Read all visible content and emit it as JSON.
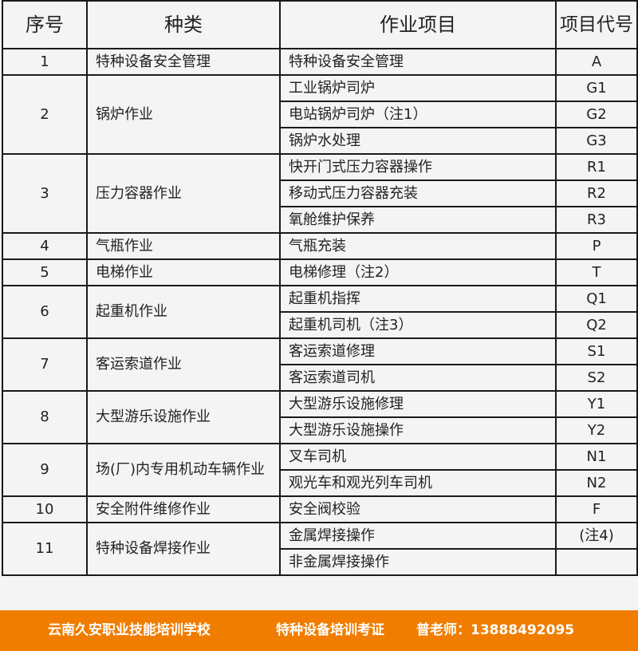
{
  "headers": {
    "no": "序号",
    "category": "种类",
    "item": "作业项目",
    "code": "项目代号"
  },
  "groups": [
    {
      "no": "1",
      "category": "特种设备安全管理",
      "items": [
        {
          "name": "特种设备安全管理",
          "code": "A"
        }
      ]
    },
    {
      "no": "2",
      "category": "锅炉作业",
      "items": [
        {
          "name": "工业锅炉司炉",
          "code": "G1"
        },
        {
          "name": "电站锅炉司炉（注1）",
          "code": "G2"
        },
        {
          "name": "锅炉水处理",
          "code": "G3"
        }
      ]
    },
    {
      "no": "3",
      "category": "压力容器作业",
      "items": [
        {
          "name": "快开门式压力容器操作",
          "code": "R1"
        },
        {
          "name": "移动式压力容器充装",
          "code": "R2"
        },
        {
          "name": "氧舱维护保养",
          "code": "R3"
        }
      ]
    },
    {
      "no": "4",
      "category": "气瓶作业",
      "items": [
        {
          "name": "气瓶充装",
          "code": "P"
        }
      ]
    },
    {
      "no": "5",
      "category": "电梯作业",
      "items": [
        {
          "name": "电梯修理（注2）",
          "code": "T"
        }
      ]
    },
    {
      "no": "6",
      "category": "起重机作业",
      "items": [
        {
          "name": "起重机指挥",
          "code": "Q1"
        },
        {
          "name": "起重机司机（注3）",
          "code": "Q2"
        }
      ]
    },
    {
      "no": "7",
      "category": "客运索道作业",
      "items": [
        {
          "name": "客运索道修理",
          "code": "S1"
        },
        {
          "name": "客运索道司机",
          "code": "S2"
        }
      ]
    },
    {
      "no": "8",
      "category": "大型游乐设施作业",
      "items": [
        {
          "name": "大型游乐设施修理",
          "code": "Y1"
        },
        {
          "name": "大型游乐设施操作",
          "code": "Y2"
        }
      ]
    },
    {
      "no": "9",
      "category": "场(厂)内专用机动车辆作业",
      "items": [
        {
          "name": "叉车司机",
          "code": "N1"
        },
        {
          "name": "观光车和观光列车司机",
          "code": "N2"
        }
      ]
    },
    {
      "no": "10",
      "category": "安全附件维修作业",
      "items": [
        {
          "name": "安全阀校验",
          "code": "F"
        }
      ]
    },
    {
      "no": "11",
      "category": "特种设备焊接作业",
      "items": [
        {
          "name": "金属焊接操作",
          "code": "(注4)"
        },
        {
          "name": "非金属焊接操作",
          "code": ""
        }
      ]
    }
  ],
  "footer": {
    "school": "云南久安职业技能培训学校",
    "service": "特种设备培训考证",
    "contact": "普老师：13888492095"
  },
  "colors": {
    "footer_bg": "#f07d00",
    "border": "#1a1a1a",
    "background": "#f4f4f4"
  }
}
